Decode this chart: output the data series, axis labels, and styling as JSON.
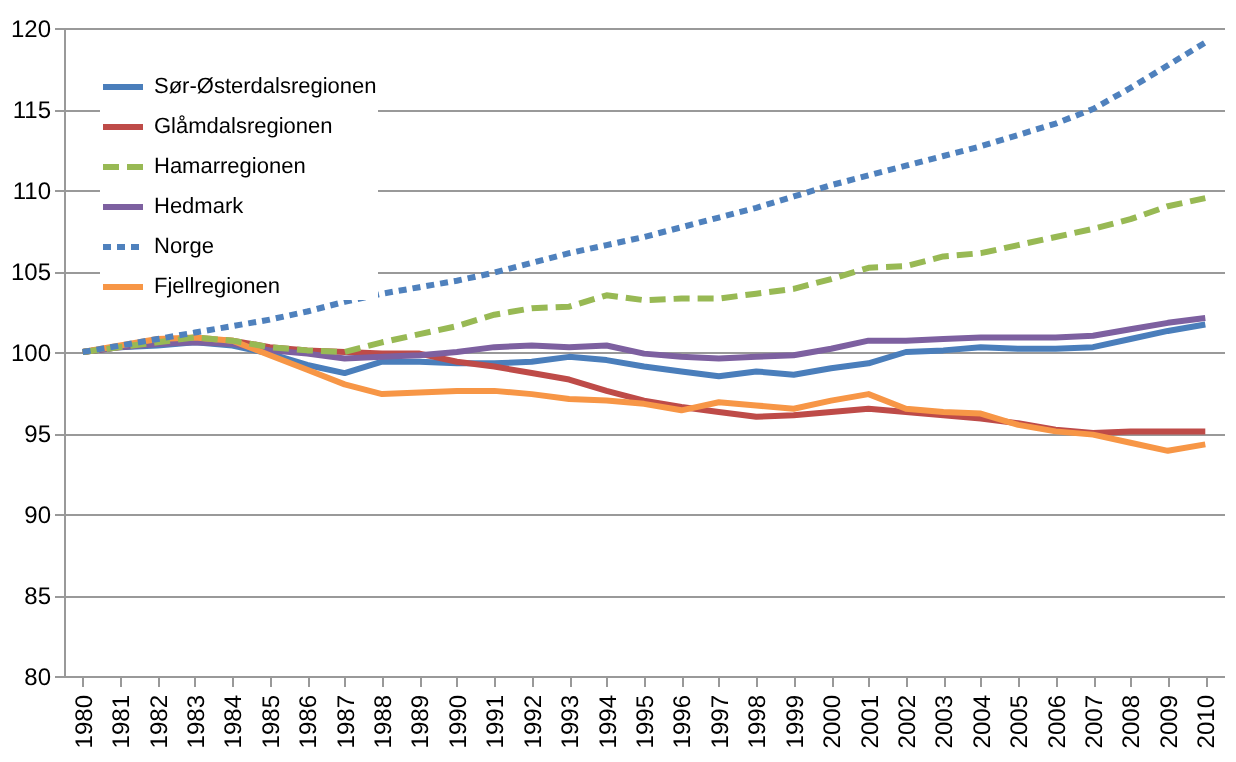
{
  "chart_data": {
    "type": "line",
    "categories": [
      "1980",
      "1981",
      "1982",
      "1983",
      "1984",
      "1985",
      "1986",
      "1987",
      "1988",
      "1989",
      "1990",
      "1991",
      "1992",
      "1993",
      "1994",
      "1995",
      "1996",
      "1997",
      "1998",
      "1999",
      "2000",
      "2001",
      "2002",
      "2003",
      "2004",
      "2005",
      "2006",
      "2007",
      "2008",
      "2009",
      "2010"
    ],
    "ylim": [
      80,
      120
    ],
    "yticks": [
      80,
      85,
      90,
      95,
      100,
      105,
      110,
      115,
      120
    ],
    "grid": "y",
    "legend": "top left",
    "series": [
      {
        "name": "Sør-Østerdalsregionen",
        "color": "#4a7ebb",
        "line_style": "solid",
        "values": [
          100,
          100.3,
          100.4,
          100.6,
          100.4,
          99.9,
          99.2,
          98.7,
          99.4,
          99.4,
          99.3,
          99.3,
          99.4,
          99.7,
          99.5,
          99.1,
          98.8,
          98.5,
          98.8,
          98.6,
          99.0,
          99.3,
          100.0,
          100.1,
          100.3,
          100.2,
          100.2,
          100.3,
          100.8,
          101.3,
          101.7
        ]
      },
      {
        "name": "Glåmdalsregionen",
        "color": "#be4b48",
        "line_style": "solid",
        "values": [
          100,
          100.3,
          100.6,
          100.8,
          100.7,
          100.3,
          100.1,
          100.0,
          99.9,
          99.9,
          99.4,
          99.1,
          98.7,
          98.3,
          97.6,
          97.0,
          96.6,
          96.3,
          96.0,
          96.1,
          96.3,
          96.5,
          96.3,
          96.1,
          95.9,
          95.6,
          95.2,
          95.0,
          95.1,
          95.1,
          95.1
        ]
      },
      {
        "name": "Hamarregionen",
        "color": "#98b954",
        "line_style": "dashed",
        "values": [
          100,
          100.3,
          100.6,
          100.9,
          100.7,
          100.3,
          100.1,
          100.0,
          100.6,
          101.1,
          101.6,
          102.3,
          102.7,
          102.8,
          103.5,
          103.2,
          103.3,
          103.3,
          103.6,
          103.9,
          104.5,
          105.2,
          105.3,
          105.9,
          106.1,
          106.6,
          107.1,
          107.6,
          108.2,
          109.0,
          109.5
        ]
      },
      {
        "name": "Hedmark",
        "color": "#7d60a0",
        "line_style": "solid",
        "values": [
          100,
          100.3,
          100.5,
          100.6,
          100.5,
          100.1,
          99.9,
          99.6,
          99.7,
          99.8,
          100.0,
          100.3,
          100.4,
          100.3,
          100.4,
          99.9,
          99.7,
          99.6,
          99.7,
          99.8,
          100.2,
          100.7,
          100.7,
          100.8,
          100.9,
          100.9,
          100.9,
          101.0,
          101.4,
          101.8,
          102.1
        ]
      },
      {
        "name": "Norge",
        "color": "#4f81bd",
        "line_style": "dotted",
        "values": [
          100,
          100.4,
          100.8,
          101.2,
          101.6,
          102.0,
          102.5,
          103.1,
          103.6,
          104.0,
          104.4,
          104.9,
          105.5,
          106.1,
          106.6,
          107.1,
          107.7,
          108.3,
          108.9,
          109.6,
          110.3,
          110.9,
          111.5,
          112.1,
          112.7,
          113.4,
          114.1,
          115.0,
          116.3,
          117.7,
          119.1
        ]
      },
      {
        "name": "Fjellregionen",
        "color": "#f79646",
        "line_style": "solid",
        "values": [
          100,
          100.4,
          100.8,
          100.9,
          100.7,
          99.8,
          98.9,
          98.0,
          97.4,
          97.5,
          97.6,
          97.6,
          97.4,
          97.1,
          97.0,
          96.8,
          96.4,
          96.9,
          96.7,
          96.5,
          97.0,
          97.4,
          96.5,
          96.3,
          96.2,
          95.5,
          95.1,
          94.9,
          94.4,
          93.9,
          94.3
        ]
      }
    ]
  }
}
